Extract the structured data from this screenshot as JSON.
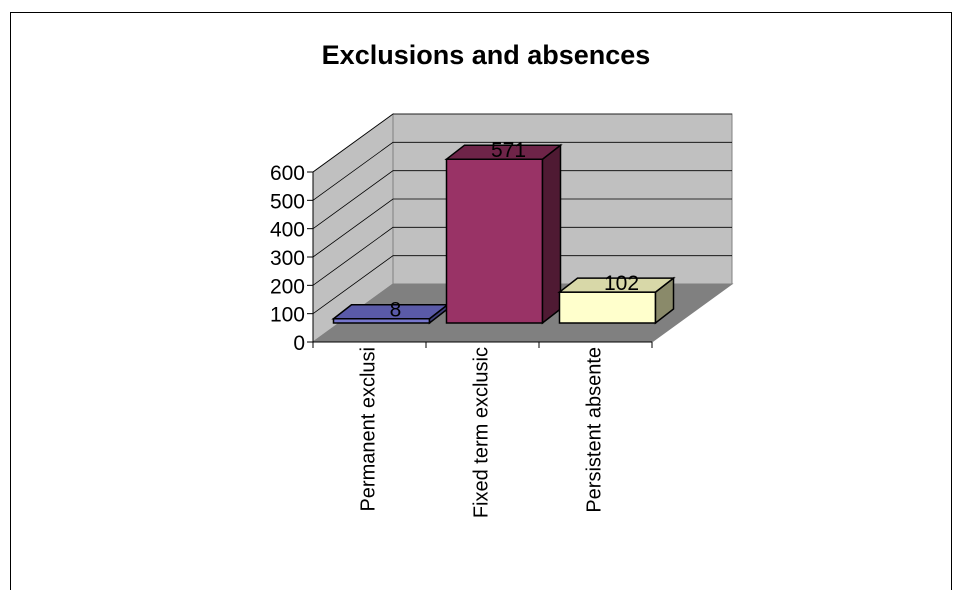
{
  "chart_data": {
    "type": "bar",
    "title": "Exclusions and absences",
    "xlabel": "",
    "ylabel": "",
    "categories": [
      "Permanent exclusi",
      "Fixed term exclusic",
      "Persistent absente"
    ],
    "values": [
      8,
      571,
      102
    ],
    "data_labels": [
      "8",
      "571",
      "102"
    ],
    "y_ticks": [
      "0",
      "100",
      "200",
      "300",
      "400",
      "500",
      "600"
    ],
    "ylim": [
      0,
      600
    ],
    "grid": true,
    "legend": "none",
    "colors": {
      "bars": [
        "#7777cc",
        "#993366",
        "#ffffcc"
      ],
      "bar_sides": [
        "#3f3f7a",
        "#4f1a33",
        "#8a8a6a"
      ],
      "bar_tops": [
        "#5a5aa8",
        "#6e2448",
        "#d8d8a8"
      ],
      "walls": "#c0c0c0",
      "floor": "#808080"
    }
  }
}
